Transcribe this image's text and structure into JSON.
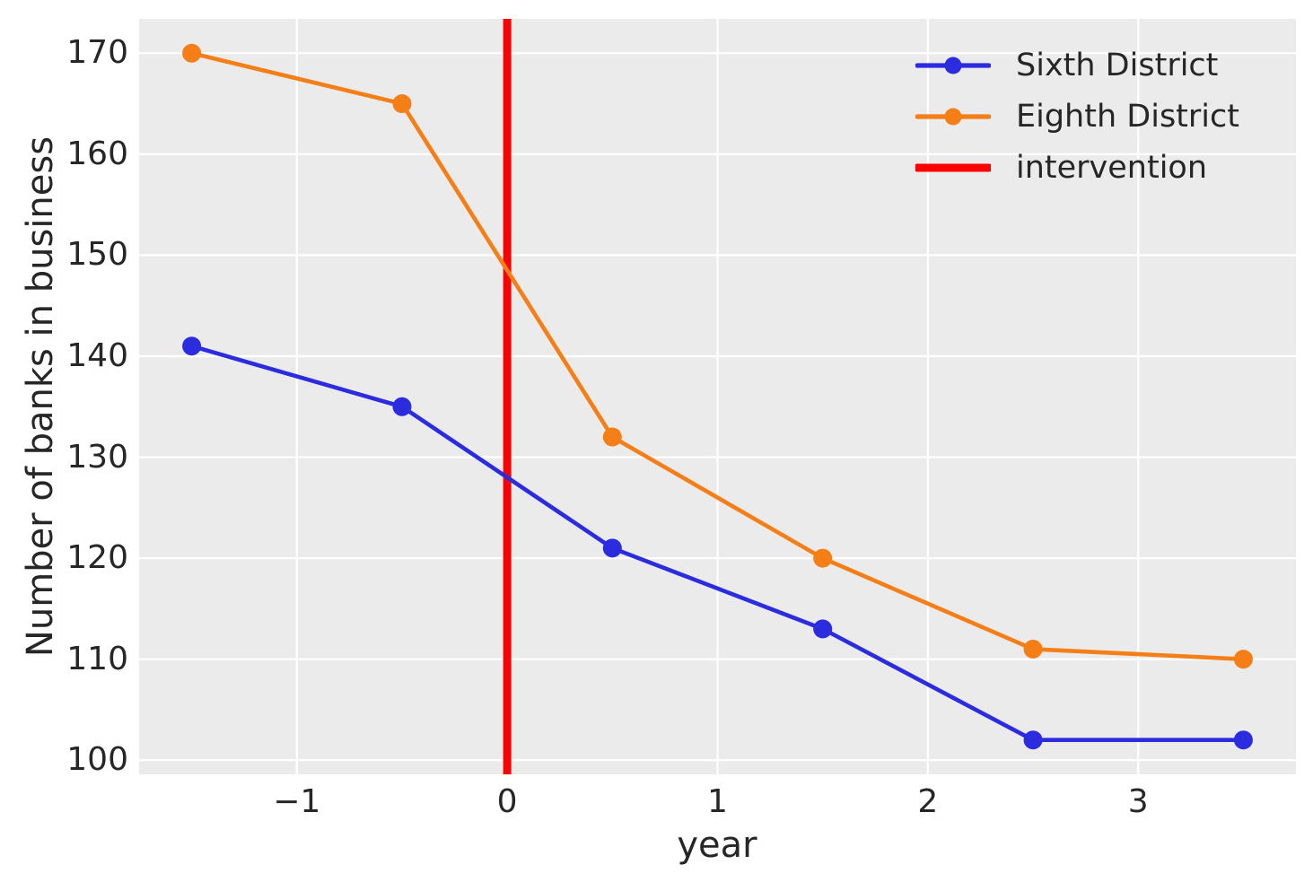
{
  "chart_data": {
    "type": "line",
    "title": "",
    "xlabel": "year",
    "ylabel": "Number of banks in business",
    "x": [
      -1.5,
      -0.5,
      0.5,
      1.5,
      2.5,
      3.5
    ],
    "series": [
      {
        "name": "Sixth District",
        "color": "#2b2bdf",
        "values": [
          141,
          135,
          121,
          113,
          102,
          102
        ]
      },
      {
        "name": "Eighth District",
        "color": "#f57e17",
        "values": [
          170,
          165,
          132,
          120,
          111,
          110
        ]
      }
    ],
    "vline": {
      "label": "intervention",
      "x": 0,
      "color": "#ff0000"
    },
    "xlim": [
      -1.75,
      3.75
    ],
    "ylim": [
      98.6,
      173.4
    ],
    "xticks": {
      "values": [
        -1,
        0,
        1,
        2,
        3
      ],
      "labels": [
        "−1",
        "0",
        "1",
        "2",
        "3"
      ]
    },
    "yticks": {
      "values": [
        100,
        110,
        120,
        130,
        140,
        150,
        160,
        170
      ],
      "labels": [
        "100",
        "110",
        "120",
        "130",
        "140",
        "150",
        "160",
        "170"
      ]
    },
    "grid": true,
    "legend_position": "upper right",
    "plot_background": "#ebebeb",
    "grid_color": "#ffffff",
    "text_color": "#262626"
  }
}
